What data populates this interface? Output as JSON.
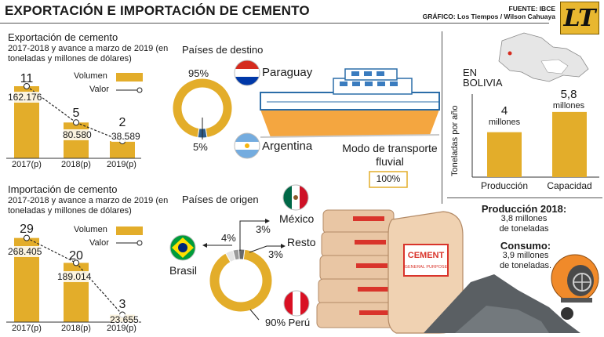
{
  "header": {
    "title": "EXPORTACIÓN E IMPORTACIÓN DE CEMENTO",
    "source": "FUENTE: IBCE",
    "graphic": "GRÁFICO: Los Tiempos / Wilson Cahuaya",
    "logo": "LT"
  },
  "colors": {
    "bar": "#e3ad2a",
    "accent_gray": "#9a9a9a",
    "paraguay_red": "#d52b1e",
    "paraguay_blue": "#0038a8",
    "argentina_blue": "#74acdf"
  },
  "chart_data": [
    {
      "type": "bar",
      "title": "Exportación de cemento",
      "subtitle": "2017-2018 y avance a marzo de 2019 (en toneladas y millones de dólares)",
      "categories": [
        "2017(p)",
        "2018(p)",
        "2019(p)"
      ],
      "series": [
        {
          "name": "Volumen",
          "values": [
            162176,
            80580,
            38589
          ],
          "labels": [
            "162.176",
            "80.580",
            "38.589"
          ]
        },
        {
          "name": "Valor",
          "values": [
            11,
            5,
            2
          ],
          "labels": [
            "11",
            "5",
            "2"
          ]
        }
      ],
      "legend": "top-right"
    },
    {
      "type": "bar",
      "title": "Importación de cemento",
      "subtitle": "2017-2018 y avance a marzo de 2019 (en toneladas y millones de dólares)",
      "categories": [
        "2017(p)",
        "2018(p)",
        "2019(p)"
      ],
      "series": [
        {
          "name": "Volumen",
          "values": [
            268405,
            189014,
            23655
          ],
          "labels": [
            "268.405",
            "189.014",
            "23.655"
          ]
        },
        {
          "name": "Valor",
          "values": [
            29,
            20,
            3
          ],
          "labels": [
            "29",
            "20",
            "3"
          ]
        }
      ],
      "legend": "top-right"
    },
    {
      "type": "pie",
      "title": "Países de destino",
      "slices": [
        {
          "name": "Paraguay",
          "value": 95,
          "label": "95%"
        },
        {
          "name": "Argentina",
          "value": 5,
          "label": "5%"
        }
      ]
    },
    {
      "type": "pie",
      "title": "Países de origen",
      "slices": [
        {
          "name": "Perú",
          "value": 90,
          "label": "90% Perú"
        },
        {
          "name": "Brasil",
          "value": 4,
          "label": "4%"
        },
        {
          "name": "México",
          "value": 3,
          "label": "3%"
        },
        {
          "name": "Resto",
          "value": 3,
          "label": "3%"
        }
      ]
    },
    {
      "type": "bar",
      "title": "EN BOLIVIA",
      "ylabel": "Toneladas por año",
      "categories": [
        "Producción",
        "Capacidad"
      ],
      "values": [
        4,
        5.8
      ],
      "value_labels": [
        [
          "4",
          "millones"
        ],
        [
          "5,8",
          "millones"
        ]
      ]
    }
  ],
  "export_labels": {
    "paraguay": "Paraguay",
    "argentina": "Argentina"
  },
  "import_labels": {
    "brasil": "Brasil",
    "mexico": "México",
    "resto": "Resto"
  },
  "transport": {
    "title_line1": "Modo de transporte",
    "title_line2": "fluvial",
    "value": "100%"
  },
  "bolivia_stats": {
    "prod_title": "Producción 2018:",
    "prod_value1": "3,8 millones",
    "prod_value2": "de toneladas",
    "cons_title": "Consumo:",
    "cons_value1": "3,9 millones",
    "cons_value2": "de toneladas."
  },
  "illustration": {
    "bag_text1": "CEMENT",
    "bag_text2": "GENERAL PURPOSE",
    "stack_text": "CEMENT"
  }
}
